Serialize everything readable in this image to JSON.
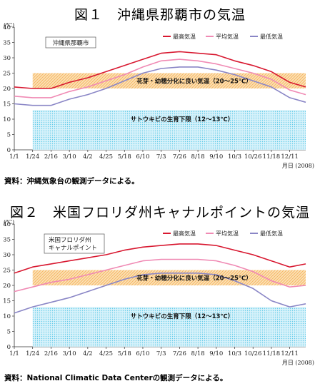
{
  "figure1": {
    "title": "図１　沖縄県那覇市の気温",
    "source": "資料：沖縄気象台の観測データによる。"
  },
  "figure2": {
    "title": "図２　米国フロリダ州キャナルポイントの気温",
    "source": "資料：National Climatic Data Centerの観測データによる。"
  },
  "colors": {
    "max": "#d81830",
    "avg": "#f08ab4",
    "min": "#8a86c6",
    "band_flower": "#f4b45a",
    "band_cane": "#58c8e8"
  },
  "chart_data": [
    {
      "type": "line",
      "title": "図１　沖縄県那覇市の気温",
      "location_label": "沖縄県那覇市",
      "unit_label": "(℃)",
      "xlabel": "月日 (2008)",
      "ylim": [
        0,
        40
      ],
      "yticks": [
        0,
        5,
        10,
        15,
        20,
        25,
        30,
        35,
        40
      ],
      "x_ticks": [
        "1/1",
        "1/24",
        "2/16",
        "3/10",
        "4/2",
        "4/25",
        "5/18",
        "6/10",
        "7/3",
        "7/26",
        "8/18",
        "9/10",
        "10/3",
        "10/26",
        "11/18",
        "12/11"
      ],
      "legend": [
        "最高気温",
        "平均気温",
        "最低気温"
      ],
      "bands": [
        {
          "label": "花芽・幼穂分化に良い気温（20～25℃）",
          "from": 20,
          "to": 25,
          "start": "1/24",
          "end": "12/31"
        },
        {
          "label": "サトウキビの生育下限（12～13℃）",
          "from": 0,
          "to": 13,
          "start": "1/24",
          "end": "12/31"
        }
      ],
      "series": [
        {
          "name": "最高気温",
          "x": [
            "1/1",
            "1/24",
            "2/16",
            "3/10",
            "4/2",
            "4/25",
            "5/18",
            "6/10",
            "7/3",
            "7/26",
            "8/18",
            "9/10",
            "10/3",
            "10/26",
            "11/18",
            "12/11",
            "12/31"
          ],
          "values": [
            20.5,
            20,
            20,
            22,
            23.5,
            25.5,
            27.5,
            29.5,
            31.5,
            32,
            31.5,
            31,
            29,
            27.5,
            25.5,
            22,
            20.5
          ]
        },
        {
          "name": "平均気温",
          "x": [
            "1/1",
            "1/24",
            "2/16",
            "3/10",
            "4/2",
            "4/25",
            "5/18",
            "6/10",
            "7/3",
            "7/26",
            "8/18",
            "9/10",
            "10/3",
            "10/26",
            "11/18",
            "12/11",
            "12/31"
          ],
          "values": [
            17.5,
            17,
            17,
            19,
            20.5,
            22.5,
            24.5,
            27,
            29,
            29.5,
            29,
            28,
            26.5,
            25,
            23,
            19.5,
            18
          ]
        },
        {
          "name": "最低気温",
          "x": [
            "1/1",
            "1/24",
            "2/16",
            "3/10",
            "4/2",
            "4/25",
            "5/18",
            "6/10",
            "7/3",
            "7/26",
            "8/18",
            "9/10",
            "10/3",
            "10/26",
            "11/18",
            "12/11",
            "12/31"
          ],
          "values": [
            15,
            14.5,
            14.5,
            16.5,
            18,
            20,
            22.5,
            25,
            26.5,
            27,
            27,
            26,
            24.5,
            22.5,
            20.5,
            17,
            15.5
          ]
        }
      ]
    },
    {
      "type": "line",
      "title": "図２　米国フロリダ州キャナルポイントの気温",
      "location_label": "米国フロリダ州キャナルポイント",
      "unit_label": "(℃)",
      "xlabel": "月日 (2008)",
      "ylim": [
        0,
        40
      ],
      "yticks": [
        0,
        5,
        10,
        15,
        20,
        25,
        30,
        35,
        40
      ],
      "x_ticks": [
        "1/1",
        "1/24",
        "2/16",
        "3/10",
        "4/2",
        "4/25",
        "5/18",
        "6/10",
        "7/3",
        "7/26",
        "8/18",
        "9/10",
        "10/3",
        "10/26",
        "11/18",
        "12/11"
      ],
      "legend": [
        "最高気温",
        "平均気温",
        "最低気温"
      ],
      "bands": [
        {
          "label": "花芽・幼穂分化に良い気温（20～25℃）",
          "from": 20,
          "to": 25,
          "start": "1/24",
          "end": "12/31"
        },
        {
          "label": "サトウキビの生育下限（12～13℃）",
          "from": 0,
          "to": 13,
          "start": "1/24",
          "end": "12/31"
        }
      ],
      "series": [
        {
          "name": "最高気温",
          "x": [
            "1/1",
            "1/24",
            "2/16",
            "3/10",
            "4/2",
            "4/25",
            "5/18",
            "6/10",
            "7/3",
            "7/26",
            "8/18",
            "9/10",
            "10/3",
            "10/26",
            "11/18",
            "12/11",
            "12/31"
          ],
          "values": [
            24,
            26,
            27,
            28,
            29,
            30,
            31.5,
            32.5,
            33,
            33.5,
            33.5,
            33,
            31.5,
            30,
            28,
            26,
            27
          ]
        },
        {
          "name": "平均気温",
          "x": [
            "1/1",
            "1/24",
            "2/16",
            "3/10",
            "4/2",
            "4/25",
            "5/18",
            "6/10",
            "7/3",
            "7/26",
            "8/18",
            "9/10",
            "10/3",
            "10/26",
            "11/18",
            "12/11",
            "12/31"
          ],
          "values": [
            18,
            19.5,
            21,
            22,
            23.5,
            25,
            26.5,
            28,
            28.5,
            28.5,
            28.5,
            28,
            26.5,
            24.5,
            21.5,
            19.5,
            20
          ]
        },
        {
          "name": "最低気温",
          "x": [
            "1/1",
            "1/24",
            "2/16",
            "3/10",
            "4/2",
            "4/25",
            "5/18",
            "6/10",
            "7/3",
            "7/26",
            "8/18",
            "9/10",
            "10/3",
            "10/26",
            "11/18",
            "12/11",
            "12/31"
          ],
          "values": [
            11,
            13,
            14.5,
            16,
            18,
            20,
            22,
            23.5,
            24,
            24,
            24,
            23.5,
            21.5,
            19,
            15,
            13,
            14
          ]
        }
      ]
    }
  ]
}
